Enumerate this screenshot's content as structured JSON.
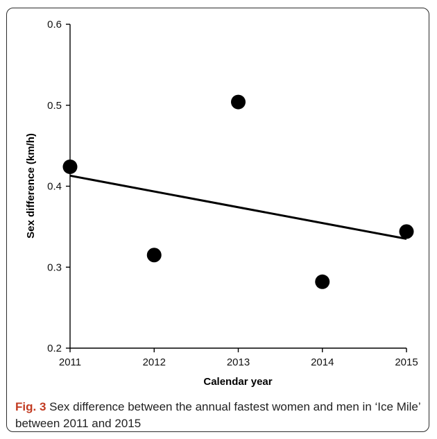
{
  "caption": {
    "label": "Fig. 3",
    "text": "Sex difference between the annual fastest women and men in ‘Ice Mile’ between 2011 and 2015"
  },
  "chart_data": {
    "type": "scatter",
    "title": "",
    "xlabel": "Calendar year",
    "ylabel": "Sex difference (km/h)",
    "xlim": [
      2011,
      2015
    ],
    "ylim": [
      0.2,
      0.6
    ],
    "x_ticks": [
      "2011",
      "2012",
      "2013",
      "2014",
      "2015"
    ],
    "y_ticks": [
      "0.2",
      "0.3",
      "0.4",
      "0.5",
      "0.6"
    ],
    "grid": false,
    "series": [
      {
        "points": [
          {
            "x": 2011,
            "y": 0.424
          },
          {
            "x": 2012,
            "y": 0.315
          },
          {
            "x": 2013,
            "y": 0.504
          },
          {
            "x": 2014,
            "y": 0.282
          },
          {
            "x": 2015,
            "y": 0.344
          }
        ],
        "marker_color": "#000000"
      }
    ],
    "trendline": {
      "x": [
        2011,
        2015
      ],
      "y": [
        0.413,
        0.335
      ],
      "color": "#000000"
    }
  }
}
